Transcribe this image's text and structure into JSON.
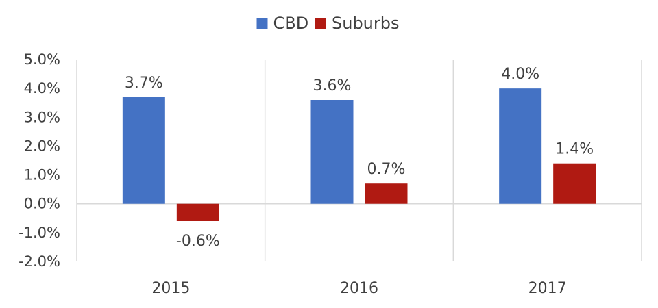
{
  "chart_data": {
    "type": "bar",
    "categories": [
      "2015",
      "2016",
      "2017"
    ],
    "series": [
      {
        "name": "CBD",
        "color": "#4472C4",
        "values": [
          3.7,
          3.6,
          4.0
        ],
        "labels": [
          "3.7%",
          "3.6%",
          "4.0%"
        ]
      },
      {
        "name": "Suburbs",
        "color": "#B01A12",
        "values": [
          -0.6,
          0.7,
          1.4
        ],
        "labels": [
          "-0.6%",
          "0.7%",
          "1.4%"
        ]
      }
    ],
    "ylim": [
      -2.0,
      5.0
    ],
    "yticks": [
      {
        "value": 5.0,
        "label": "5.0%"
      },
      {
        "value": 4.0,
        "label": "4.0%"
      },
      {
        "value": 3.0,
        "label": "3.0%"
      },
      {
        "value": 2.0,
        "label": "2.0%"
      },
      {
        "value": 1.0,
        "label": "1.0%"
      },
      {
        "value": 0.0,
        "label": "0.0%"
      },
      {
        "value": -1.0,
        "label": "-1.0%"
      },
      {
        "value": -2.0,
        "label": "-2.0%"
      }
    ],
    "legend_position": "top-center",
    "grid": "vertical category separators",
    "axis_color": "#d9d9d9"
  }
}
